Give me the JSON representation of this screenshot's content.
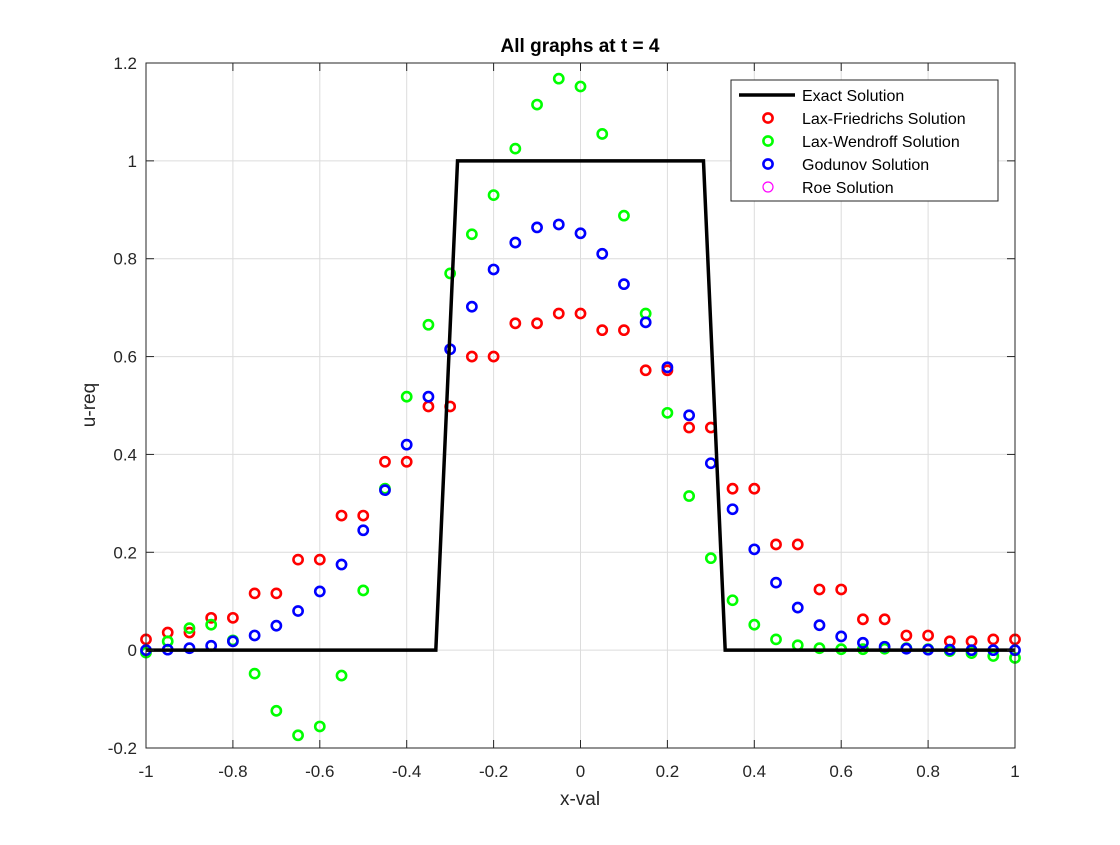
{
  "chart_data": {
    "type": "scatter",
    "title": "All graphs at t = 4",
    "xlabel": "x-val",
    "ylabel": "u-req",
    "xlim": [
      -1,
      1
    ],
    "ylim": [
      -0.2,
      1.2
    ],
    "xticks": [
      -1,
      -0.8,
      -0.6,
      -0.4,
      -0.2,
      0,
      0.2,
      0.4,
      0.6,
      0.8,
      1
    ],
    "xtick_labels": [
      "-1",
      "-0.8",
      "-0.6",
      "-0.4",
      "-0.2",
      "0",
      "0.2",
      "0.4",
      "0.6",
      "0.8",
      "1"
    ],
    "yticks": [
      -0.2,
      0,
      0.2,
      0.4,
      0.6,
      0.8,
      1,
      1.2
    ],
    "ytick_labels": [
      "-0.2",
      "0",
      "0.2",
      "0.4",
      "0.6",
      "0.8",
      "1",
      "1.2"
    ],
    "grid": true,
    "legend_position": "top-right",
    "series": [
      {
        "name": "Exact Solution",
        "kind": "line",
        "color": "#000000",
        "x": [
          -1,
          -0.333,
          -0.283,
          0.283,
          0.333,
          1
        ],
        "y": [
          0,
          0,
          1,
          1,
          0,
          0
        ]
      },
      {
        "name": "Lax-Friedrichs Solution",
        "kind": "marker",
        "color": "#ff0000",
        "x": [
          -1,
          -0.95,
          -0.9,
          -0.85,
          -0.8,
          -0.75,
          -0.7,
          -0.65,
          -0.6,
          -0.55,
          -0.5,
          -0.45,
          -0.4,
          -0.35,
          -0.3,
          -0.25,
          -0.2,
          -0.15,
          -0.1,
          -0.05,
          0,
          0.05,
          0.1,
          0.15,
          0.2,
          0.25,
          0.3,
          0.35,
          0.4,
          0.45,
          0.5,
          0.55,
          0.6,
          0.65,
          0.7,
          0.75,
          0.8,
          0.85,
          0.9,
          0.95,
          1
        ],
        "y": [
          0.022,
          0.036,
          0.036,
          0.066,
          0.066,
          0.116,
          0.116,
          0.185,
          0.185,
          0.275,
          0.275,
          0.385,
          0.385,
          0.498,
          0.498,
          0.6,
          0.6,
          0.668,
          0.668,
          0.688,
          0.688,
          0.654,
          0.654,
          0.572,
          0.572,
          0.455,
          0.455,
          0.33,
          0.33,
          0.216,
          0.216,
          0.124,
          0.124,
          0.063,
          0.063,
          0.03,
          0.03,
          0.018,
          0.018,
          0.022,
          0.022
        ]
      },
      {
        "name": "Lax-Wendroff Solution",
        "kind": "marker",
        "color": "#00ff00",
        "x": [
          -1,
          -0.95,
          -0.9,
          -0.85,
          -0.8,
          -0.75,
          -0.7,
          -0.65,
          -0.6,
          -0.55,
          -0.5,
          -0.45,
          -0.4,
          -0.35,
          -0.3,
          -0.25,
          -0.2,
          -0.15,
          -0.1,
          -0.05,
          0,
          0.05,
          0.1,
          0.15,
          0.2,
          0.25,
          0.3,
          0.35,
          0.4,
          0.45,
          0.5,
          0.55,
          0.6,
          0.65,
          0.7,
          0.75,
          0.8,
          0.85,
          0.9,
          0.95,
          1
        ],
        "y": [
          -0.005,
          0.018,
          0.045,
          0.052,
          0.02,
          -0.048,
          -0.124,
          -0.174,
          -0.156,
          -0.052,
          0.122,
          0.33,
          0.518,
          0.665,
          0.77,
          0.85,
          0.93,
          1.025,
          1.115,
          1.168,
          1.152,
          1.055,
          0.888,
          0.688,
          0.485,
          0.315,
          0.188,
          0.102,
          0.052,
          0.022,
          0.01,
          0.004,
          0.002,
          0.002,
          0.003,
          0.004,
          0.002,
          -0.002,
          -0.006,
          -0.012,
          -0.016
        ]
      },
      {
        "name": "Godunov Solution",
        "kind": "marker",
        "color": "#0000ff",
        "x": [
          -1,
          -0.95,
          -0.9,
          -0.85,
          -0.8,
          -0.75,
          -0.7,
          -0.65,
          -0.6,
          -0.55,
          -0.5,
          -0.45,
          -0.4,
          -0.35,
          -0.3,
          -0.25,
          -0.2,
          -0.15,
          -0.1,
          -0.05,
          0,
          0.05,
          0.1,
          0.15,
          0.2,
          0.25,
          0.3,
          0.35,
          0.4,
          0.45,
          0.5,
          0.55,
          0.6,
          0.65,
          0.7,
          0.75,
          0.8,
          0.85,
          0.9,
          0.95,
          1
        ],
        "y": [
          0,
          0.001,
          0.004,
          0.009,
          0.018,
          0.03,
          0.05,
          0.08,
          0.12,
          0.175,
          0.245,
          0.327,
          0.42,
          0.518,
          0.615,
          0.702,
          0.778,
          0.833,
          0.864,
          0.87,
          0.852,
          0.81,
          0.748,
          0.67,
          0.578,
          0.48,
          0.382,
          0.288,
          0.206,
          0.138,
          0.087,
          0.051,
          0.028,
          0.015,
          0.007,
          0.003,
          0.001,
          0.001,
          0,
          0,
          0
        ]
      },
      {
        "name": "Roe Solution",
        "kind": "marker",
        "color": "#ff00ff",
        "x": [
          -1,
          -0.95,
          -0.9,
          -0.85,
          -0.8,
          -0.75,
          -0.7,
          -0.65,
          -0.6,
          -0.55,
          -0.5,
          -0.45,
          -0.4,
          -0.35,
          -0.3,
          -0.25,
          -0.2,
          -0.15,
          -0.1,
          -0.05,
          0,
          0.05,
          0.1,
          0.15,
          0.2,
          0.25,
          0.3,
          0.35,
          0.4,
          0.45,
          0.5,
          0.55,
          0.6,
          0.65,
          0.7,
          0.75,
          0.8,
          0.85,
          0.9,
          0.95,
          1
        ],
        "y": [
          0,
          0.001,
          0.004,
          0.009,
          0.018,
          0.03,
          0.05,
          0.08,
          0.12,
          0.175,
          0.245,
          0.327,
          0.42,
          0.518,
          0.615,
          0.702,
          0.778,
          0.833,
          0.864,
          0.87,
          0.852,
          0.81,
          0.748,
          0.67,
          0.578,
          0.48,
          0.382,
          0.288,
          0.206,
          0.138,
          0.087,
          0.051,
          0.028,
          0.015,
          0.007,
          0.003,
          0.001,
          0.001,
          0,
          0,
          0
        ]
      }
    ]
  }
}
